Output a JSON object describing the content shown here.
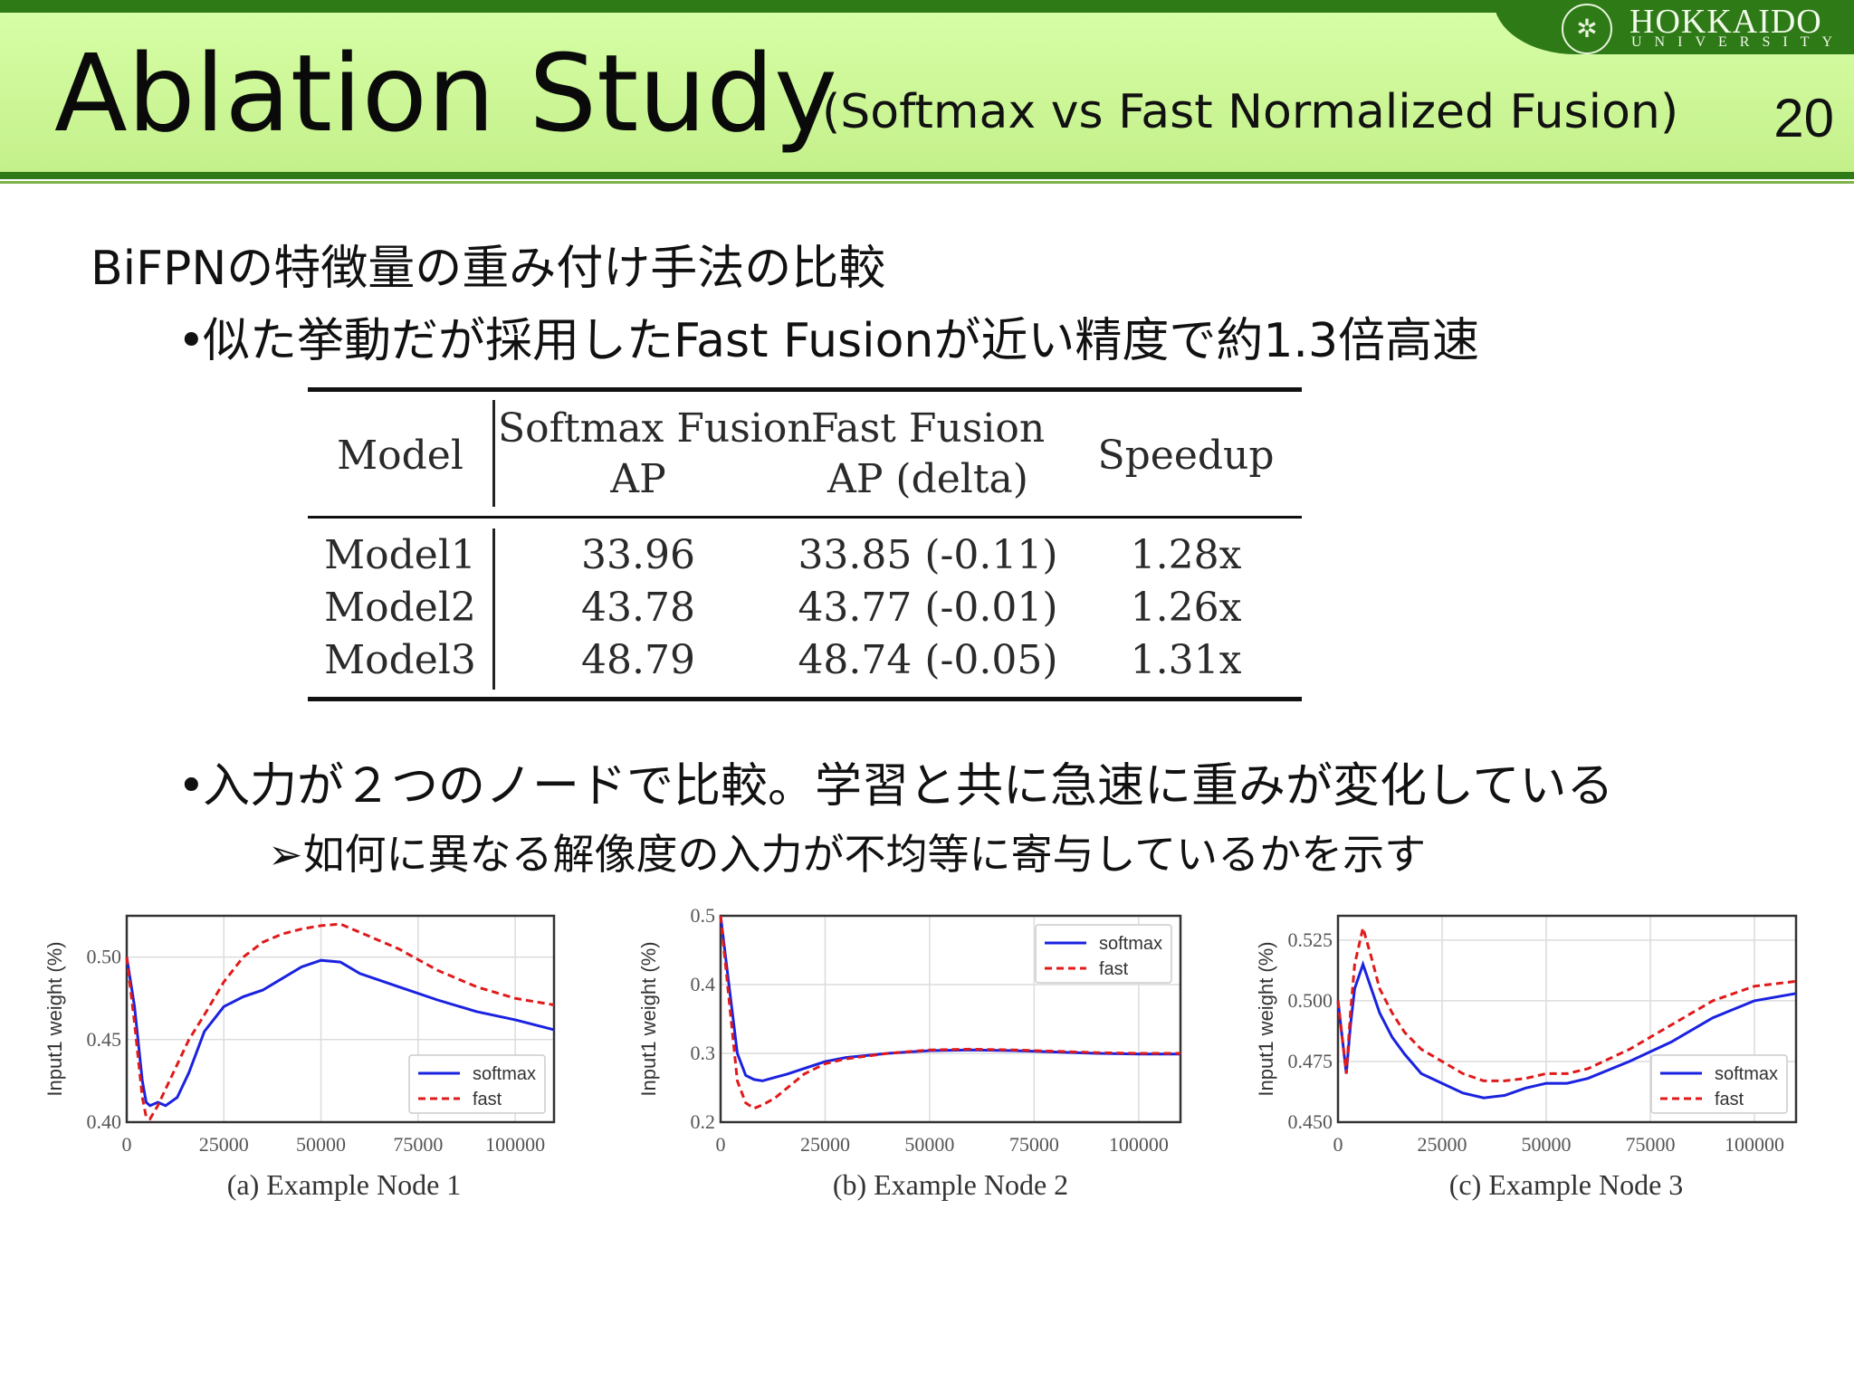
{
  "header": {
    "title": "Ablation Study",
    "subtitle": "(Softmax vs Fast Normalized Fusion)",
    "page_number": "20",
    "logo": {
      "name": "HOKKAIDO",
      "sub": "UNIVERSITY",
      "icon": "university-emblem"
    },
    "colors": {
      "band": "#c8f590",
      "dark_green": "#2e7a17"
    }
  },
  "body": {
    "heading": "BiFPNの特徴量の重み付け手法の比較",
    "bullet1": "似た挙動だが採用したFast Fusionが近い精度で約1.3倍高速",
    "bullet2": "入力が２つのノードで比較。学習と共に急速に重みが変化している",
    "sub_bullet": "如何に異なる解像度の入力が不均等に寄与しているかを示す",
    "bullet_marker": "•",
    "sub_marker": "➢"
  },
  "table": {
    "headers": [
      "Model",
      "Softmax Fusion",
      "AP",
      "Fast Fusion",
      "AP (delta)",
      "Speedup"
    ],
    "rows": [
      [
        "Model1",
        "33.96",
        "33.85 (-0.11)",
        "1.28x"
      ],
      [
        "Model2",
        "43.78",
        "43.77 (-0.01)",
        "1.26x"
      ],
      [
        "Model3",
        "48.79",
        "48.74 (-0.05)",
        "1.31x"
      ]
    ]
  },
  "chart_data": [
    {
      "type": "line",
      "caption": "(a) Example Node 1",
      "ylabel": "Input1 weight (%)",
      "xlim": [
        0,
        110000
      ],
      "ylim": [
        0.4,
        0.525
      ],
      "xticks": [
        "0",
        "25000",
        "50000",
        "75000",
        "100000"
      ],
      "yticks": [
        "0.40",
        "0.45",
        "0.50"
      ],
      "legend": "bottom-right",
      "series": [
        {
          "name": "softmax",
          "color": "#1a22e0",
          "dash": false,
          "x": [
            0,
            2000,
            4000,
            5000,
            6000,
            8000,
            10000,
            13000,
            16000,
            20000,
            25000,
            30000,
            35000,
            40000,
            45000,
            50000,
            55000,
            60000,
            70000,
            80000,
            90000,
            100000,
            110000
          ],
          "y": [
            0.5,
            0.47,
            0.425,
            0.412,
            0.41,
            0.412,
            0.41,
            0.415,
            0.43,
            0.455,
            0.47,
            0.476,
            0.48,
            0.487,
            0.494,
            0.498,
            0.497,
            0.49,
            0.482,
            0.474,
            0.467,
            0.462,
            0.456
          ]
        },
        {
          "name": "fast",
          "color": "#e01a1a",
          "dash": true,
          "x": [
            0,
            2000,
            4000,
            5000,
            6000,
            8000,
            10000,
            13000,
            16000,
            20000,
            25000,
            30000,
            35000,
            40000,
            45000,
            50000,
            55000,
            60000,
            70000,
            80000,
            90000,
            100000,
            110000
          ],
          "y": [
            0.5,
            0.46,
            0.415,
            0.403,
            0.402,
            0.41,
            0.42,
            0.435,
            0.45,
            0.465,
            0.485,
            0.5,
            0.509,
            0.514,
            0.517,
            0.519,
            0.52,
            0.515,
            0.505,
            0.492,
            0.482,
            0.475,
            0.471
          ]
        }
      ]
    },
    {
      "type": "line",
      "caption": "(b) Example Node 2",
      "ylabel": "Input1 weight (%)",
      "xlim": [
        0,
        110000
      ],
      "ylim": [
        0.2,
        0.5
      ],
      "xticks": [
        "0",
        "25000",
        "50000",
        "75000",
        "100000"
      ],
      "yticks": [
        "0.2",
        "0.3",
        "0.4",
        "0.5"
      ],
      "legend": "top-right",
      "series": [
        {
          "name": "softmax",
          "color": "#1a22e0",
          "dash": false,
          "x": [
            0,
            2000,
            4000,
            6000,
            8000,
            10000,
            13000,
            16000,
            20000,
            25000,
            30000,
            40000,
            50000,
            60000,
            70000,
            80000,
            90000,
            100000,
            110000
          ],
          "y": [
            0.5,
            0.4,
            0.3,
            0.268,
            0.262,
            0.26,
            0.265,
            0.27,
            0.278,
            0.288,
            0.294,
            0.3,
            0.304,
            0.305,
            0.304,
            0.302,
            0.3,
            0.299,
            0.299
          ]
        },
        {
          "name": "fast",
          "color": "#e01a1a",
          "dash": true,
          "x": [
            0,
            2000,
            4000,
            6000,
            8000,
            10000,
            13000,
            16000,
            20000,
            25000,
            30000,
            40000,
            50000,
            60000,
            70000,
            80000,
            90000,
            100000,
            110000
          ],
          "y": [
            0.5,
            0.38,
            0.26,
            0.228,
            0.22,
            0.225,
            0.235,
            0.25,
            0.27,
            0.285,
            0.292,
            0.3,
            0.305,
            0.306,
            0.305,
            0.303,
            0.301,
            0.3,
            0.3
          ]
        }
      ]
    },
    {
      "type": "line",
      "caption": "(c) Example Node 3",
      "ylabel": "Input1 weight (%)",
      "xlim": [
        0,
        110000
      ],
      "ylim": [
        0.45,
        0.535
      ],
      "xticks": [
        "0",
        "25000",
        "50000",
        "75000",
        "100000"
      ],
      "yticks": [
        "0.450",
        "0.475",
        "0.500",
        "0.525"
      ],
      "legend": "bottom-right",
      "series": [
        {
          "name": "softmax",
          "color": "#1a22e0",
          "dash": false,
          "x": [
            0,
            1000,
            2000,
            3000,
            4000,
            6000,
            8000,
            10000,
            13000,
            16000,
            20000,
            25000,
            30000,
            35000,
            40000,
            45000,
            50000,
            55000,
            60000,
            70000,
            80000,
            90000,
            100000,
            110000
          ],
          "y": [
            0.5,
            0.485,
            0.47,
            0.49,
            0.505,
            0.515,
            0.505,
            0.495,
            0.485,
            0.478,
            0.47,
            0.466,
            0.462,
            0.46,
            0.461,
            0.464,
            0.466,
            0.466,
            0.468,
            0.475,
            0.483,
            0.493,
            0.5,
            0.503
          ]
        },
        {
          "name": "fast",
          "color": "#e01a1a",
          "dash": true,
          "x": [
            0,
            1000,
            2000,
            3000,
            4000,
            6000,
            8000,
            10000,
            13000,
            16000,
            20000,
            25000,
            30000,
            35000,
            40000,
            45000,
            50000,
            55000,
            60000,
            70000,
            80000,
            90000,
            100000,
            110000
          ],
          "y": [
            0.5,
            0.485,
            0.47,
            0.495,
            0.515,
            0.53,
            0.518,
            0.505,
            0.495,
            0.487,
            0.48,
            0.475,
            0.47,
            0.467,
            0.467,
            0.468,
            0.47,
            0.47,
            0.472,
            0.48,
            0.49,
            0.5,
            0.506,
            0.508
          ]
        }
      ]
    }
  ]
}
